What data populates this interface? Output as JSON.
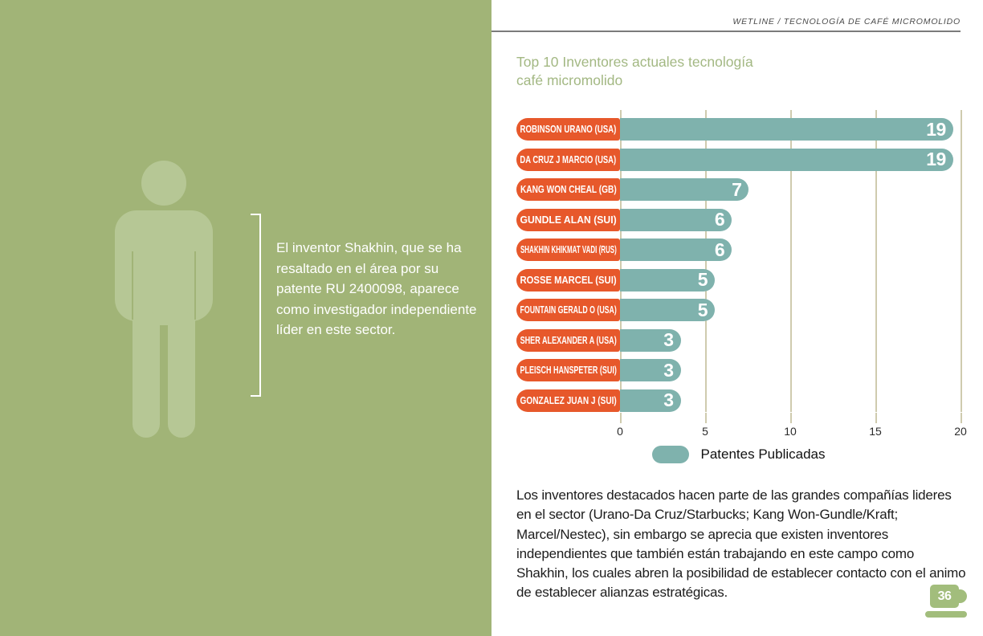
{
  "header": {
    "breadcrumb": "WETLINE / TECNOLOGÍA DE CAFÉ MICROMOLIDO"
  },
  "left_panel": {
    "person_icon": "person-silhouette-icon",
    "callout_text": "El inventor Shakhin, que se ha resaltado en el área por su patente RU 2400098, aparece como investigador independiente líder en este sector."
  },
  "chart_data": {
    "type": "bar",
    "orientation": "horizontal",
    "title": "Top 10 Inventores actuales tecnología café micromolido",
    "categories": [
      "ROBINSON URANO (USA)",
      "DA CRUZ J MARCIO (USA)",
      "KANG WON CHEAL (GB)",
      "GUNDLE ALAN (SUI)",
      "SHAKHIN KHIKMAT VADI (RUS)",
      "ROSSE MARCEL (SUI)",
      "FOUNTAIN GERALD O (USA)",
      "SHER ALEXANDER A (USA)",
      "PLEISCH HANSPETER (SUI)",
      "GONZALEZ JUAN J (SUI)"
    ],
    "values": [
      19,
      19,
      7,
      6,
      6,
      5,
      5,
      3,
      3,
      3
    ],
    "xlabel": "",
    "ylabel": "",
    "xlim": [
      0,
      20
    ],
    "xticks": [
      0,
      5,
      10,
      15,
      20
    ],
    "grid": true,
    "legend": {
      "label": "Patentes Publicadas",
      "position": "bottom-center"
    }
  },
  "body_paragraph": "Los inventores destacados hacen parte de las grandes compañías lideres en el sector (Urano-Da Cruz/Starbucks; Kang Won-Gundle/Kraft; Marcel/Nestec), sin embargo se aprecia que existen inventores independientes que también están trabajando en este campo como Shakhin, los cuales abren la posibilidad de establecer contacto con el animo de establecer alianzas estratégicas.",
  "page_badge": {
    "number": "36",
    "icon": "coffee-cup-icon"
  },
  "colors": {
    "panel_green": "#a1b477",
    "icon_green": "#b6c795",
    "bar_teal": "#7fb2ad",
    "label_orange": "#e7582b",
    "title_green": "#a3b883",
    "gridline": "#cfcbae",
    "badge_green": "#a2bd7c"
  }
}
